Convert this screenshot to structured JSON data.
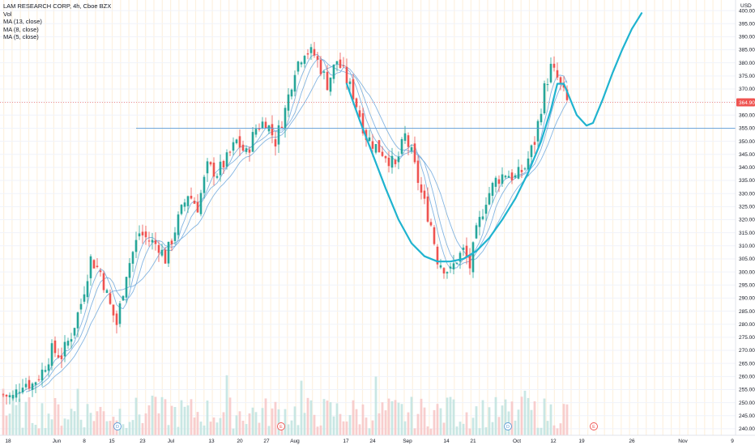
{
  "legend": {
    "title": "LAM RESEARCH CORP, 4h, Cboe BZX",
    "volume": "Vol",
    "ma1": "MA (13, close)",
    "ma2": "MA (8, close)",
    "ma3": "MA (5, close)"
  },
  "currency": "USD",
  "last_price": "364.90",
  "colors": {
    "up": "#26a69a",
    "down": "#ef5350",
    "ma": "#6fa8dc",
    "pattern": "#1fb3cf",
    "support": "#5b9bd5",
    "price_tag": "#ef5350"
  },
  "events": [
    "D",
    "E",
    "D",
    "E"
  ],
  "chart_data": {
    "type": "candlestick",
    "y_ticks": [
      240,
      245,
      250,
      255,
      260,
      265,
      270,
      275,
      280,
      285,
      290,
      295,
      300,
      305,
      310,
      315,
      320,
      325,
      330,
      335,
      340,
      345,
      350,
      355,
      360,
      365,
      370,
      375,
      380,
      385,
      390,
      395,
      400
    ],
    "x_ticks": [
      "18",
      "Jun",
      "8",
      "15",
      "23",
      "Jul",
      "13",
      "20",
      "27",
      "Aug",
      "17",
      "24",
      "Sep",
      "14",
      "21",
      "Oct",
      "12",
      "19",
      "26",
      "Nov",
      "9"
    ],
    "support_level": 355,
    "last_price": 364.9,
    "close_path": [
      [
        0,
        253
      ],
      [
        3,
        252
      ],
      [
        6,
        258
      ],
      [
        9,
        257
      ],
      [
        12,
        262
      ],
      [
        15,
        270
      ],
      [
        18,
        268
      ],
      [
        21,
        276
      ],
      [
        24,
        288
      ],
      [
        27,
        305
      ],
      [
        30,
        300
      ],
      [
        33,
        287
      ],
      [
        35,
        280
      ],
      [
        38,
        300
      ],
      [
        42,
        315
      ],
      [
        45,
        312
      ],
      [
        48,
        310
      ],
      [
        50,
        305
      ],
      [
        54,
        320
      ],
      [
        57,
        330
      ],
      [
        60,
        325
      ],
      [
        63,
        340
      ],
      [
        66,
        338
      ],
      [
        69,
        343
      ],
      [
        72,
        350
      ],
      [
        75,
        345
      ],
      [
        78,
        355
      ],
      [
        81,
        358
      ],
      [
        84,
        350
      ],
      [
        87,
        362
      ],
      [
        90,
        378
      ],
      [
        93,
        385
      ],
      [
        96,
        383
      ],
      [
        98,
        378
      ],
      [
        100,
        372
      ],
      [
        103,
        381
      ],
      [
        105,
        376
      ],
      [
        108,
        368
      ],
      [
        112,
        352
      ],
      [
        115,
        348
      ],
      [
        118,
        345
      ],
      [
        121,
        340
      ],
      [
        124,
        352
      ],
      [
        126,
        345
      ],
      [
        129,
        330
      ],
      [
        132,
        318
      ],
      [
        134,
        305
      ],
      [
        136,
        302
      ],
      [
        138,
        300
      ],
      [
        140,
        305
      ],
      [
        142,
        308
      ],
      [
        144,
        302
      ],
      [
        146,
        315
      ],
      [
        149,
        328
      ],
      [
        152,
        335
      ],
      [
        155,
        338
      ],
      [
        158,
        336
      ],
      [
        161,
        340
      ],
      [
        164,
        350
      ],
      [
        167,
        370
      ],
      [
        169,
        378
      ],
      [
        171,
        374
      ],
      [
        173,
        368
      ],
      [
        174,
        365
      ]
    ],
    "ma_periods": [
      13,
      8,
      5
    ],
    "volume_note": "volume histogram bars at bottom, colored by candle direction"
  }
}
